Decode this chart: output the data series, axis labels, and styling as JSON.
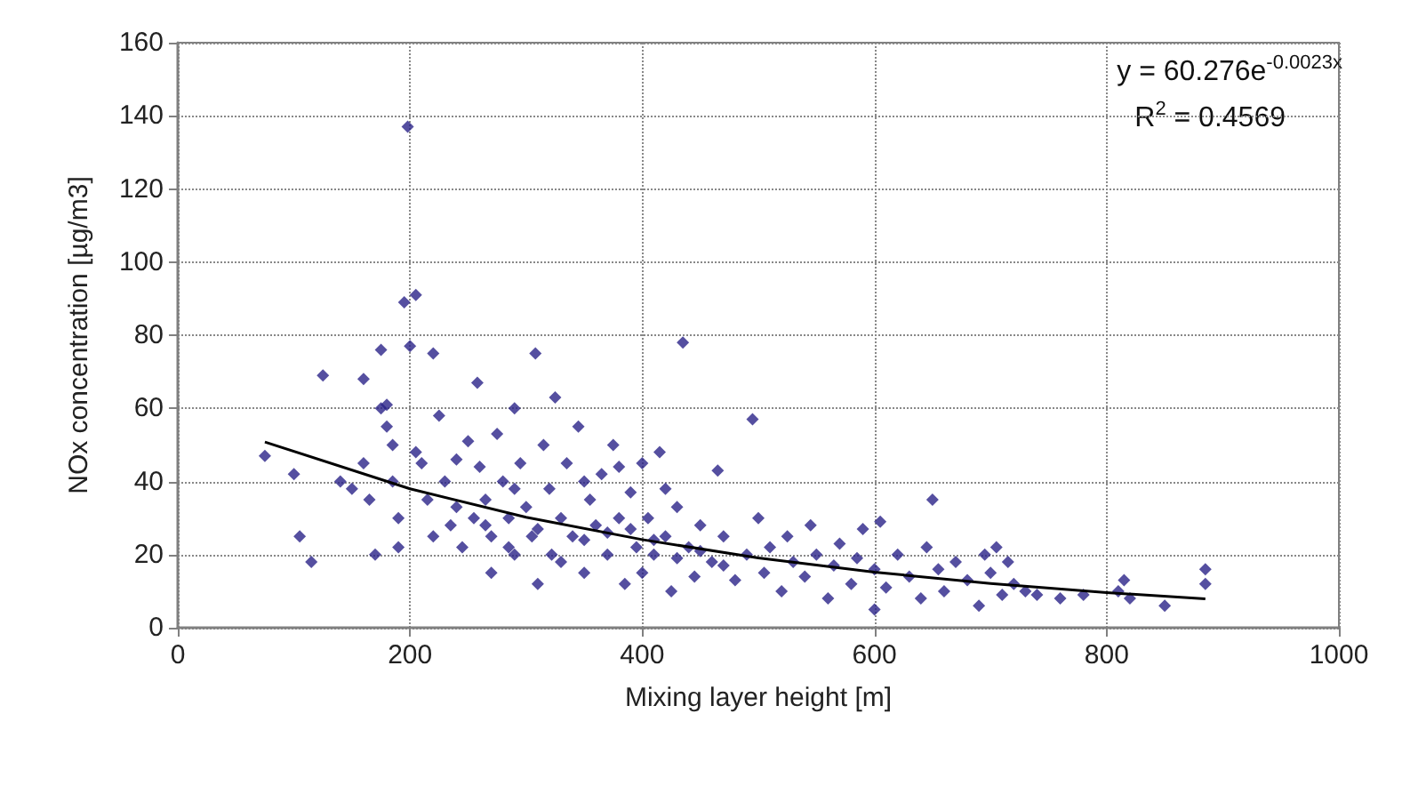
{
  "chart_data": {
    "type": "scatter",
    "xlabel": "Mixing layer height [m]",
    "ylabel": "NOx concentration [µg/m3]",
    "xlim": [
      0,
      1000
    ],
    "xticks": [
      0,
      200,
      400,
      600,
      800,
      1000
    ],
    "ylim": [
      0,
      160
    ],
    "yticks": [
      0,
      20,
      40,
      60,
      80,
      100,
      120,
      140,
      160
    ],
    "grid": true,
    "marker": "diamond",
    "annotations": [
      "y = 60.276e$^{-0.0023x}$",
      "R$^{2}$ = 0.4569"
    ],
    "series": [
      {
        "color": "#2b2388",
        "x": [
          75,
          100,
          105,
          115,
          125,
          140,
          150,
          160,
          160,
          165,
          170,
          175,
          175,
          180,
          180,
          185,
          185,
          190,
          190,
          195,
          198,
          200,
          205,
          205,
          210,
          215,
          220,
          220,
          225,
          230,
          235,
          240,
          245,
          250,
          255,
          258,
          260,
          265,
          270,
          270,
          275,
          280,
          285,
          290,
          290,
          295,
          300,
          305,
          308,
          310,
          315,
          320,
          322,
          325,
          330,
          335,
          340,
          345,
          350,
          355,
          360,
          365,
          370,
          375,
          380,
          385,
          390,
          395,
          400,
          400,
          405,
          410,
          415,
          420,
          425,
          430,
          435,
          440,
          445,
          450,
          460,
          465,
          470,
          480,
          490,
          495,
          500,
          505,
          510,
          520,
          525,
          530,
          540,
          545,
          550,
          560,
          565,
          570,
          580,
          585,
          590,
          600,
          600,
          605,
          610,
          620,
          630,
          640,
          645,
          650,
          655,
          660,
          670,
          680,
          690,
          695,
          700,
          705,
          710,
          715,
          720,
          730,
          740,
          760,
          780,
          810,
          815,
          820,
          850,
          885,
          885,
          265,
          285,
          310,
          330,
          350,
          370,
          390,
          410,
          430,
          450,
          470,
          350,
          380,
          420,
          240,
          290
        ],
        "values": [
          47,
          42,
          25,
          18,
          69,
          40,
          38,
          68,
          45,
          35,
          20,
          60,
          76,
          55,
          61,
          50,
          40,
          30,
          22,
          89,
          137,
          77,
          91,
          48,
          45,
          35,
          25,
          75,
          58,
          40,
          28,
          46,
          22,
          51,
          30,
          67,
          44,
          35,
          15,
          25,
          53,
          40,
          30,
          20,
          60,
          45,
          33,
          25,
          75,
          12,
          50,
          38,
          20,
          63,
          30,
          45,
          25,
          55,
          15,
          35,
          28,
          42,
          20,
          50,
          30,
          12,
          37,
          22,
          45,
          15,
          30,
          20,
          48,
          25,
          10,
          33,
          78,
          22,
          14,
          28,
          18,
          43,
          25,
          13,
          20,
          57,
          30,
          15,
          22,
          10,
          25,
          18,
          14,
          28,
          20,
          8,
          17,
          23,
          12,
          19,
          27,
          16,
          5,
          29,
          11,
          20,
          14,
          8,
          22,
          35,
          16,
          10,
          18,
          13,
          6,
          20,
          15,
          22,
          9,
          18,
          12,
          10,
          9,
          8,
          9,
          10,
          13,
          8,
          6,
          16,
          12,
          28,
          22,
          27,
          18,
          24,
          26,
          27,
          24,
          19,
          21,
          17,
          40,
          44,
          38,
          33,
          38
        ]
      },
      {
        "type": "line",
        "color": "#000000",
        "marker": "none",
        "x": [
          75,
          200,
          300,
          400,
          500,
          600,
          700,
          800,
          885
        ],
        "values": [
          50.8,
          38.0,
          30.2,
          24.1,
          19.1,
          15.2,
          12.1,
          9.6,
          7.9
        ]
      }
    ]
  }
}
